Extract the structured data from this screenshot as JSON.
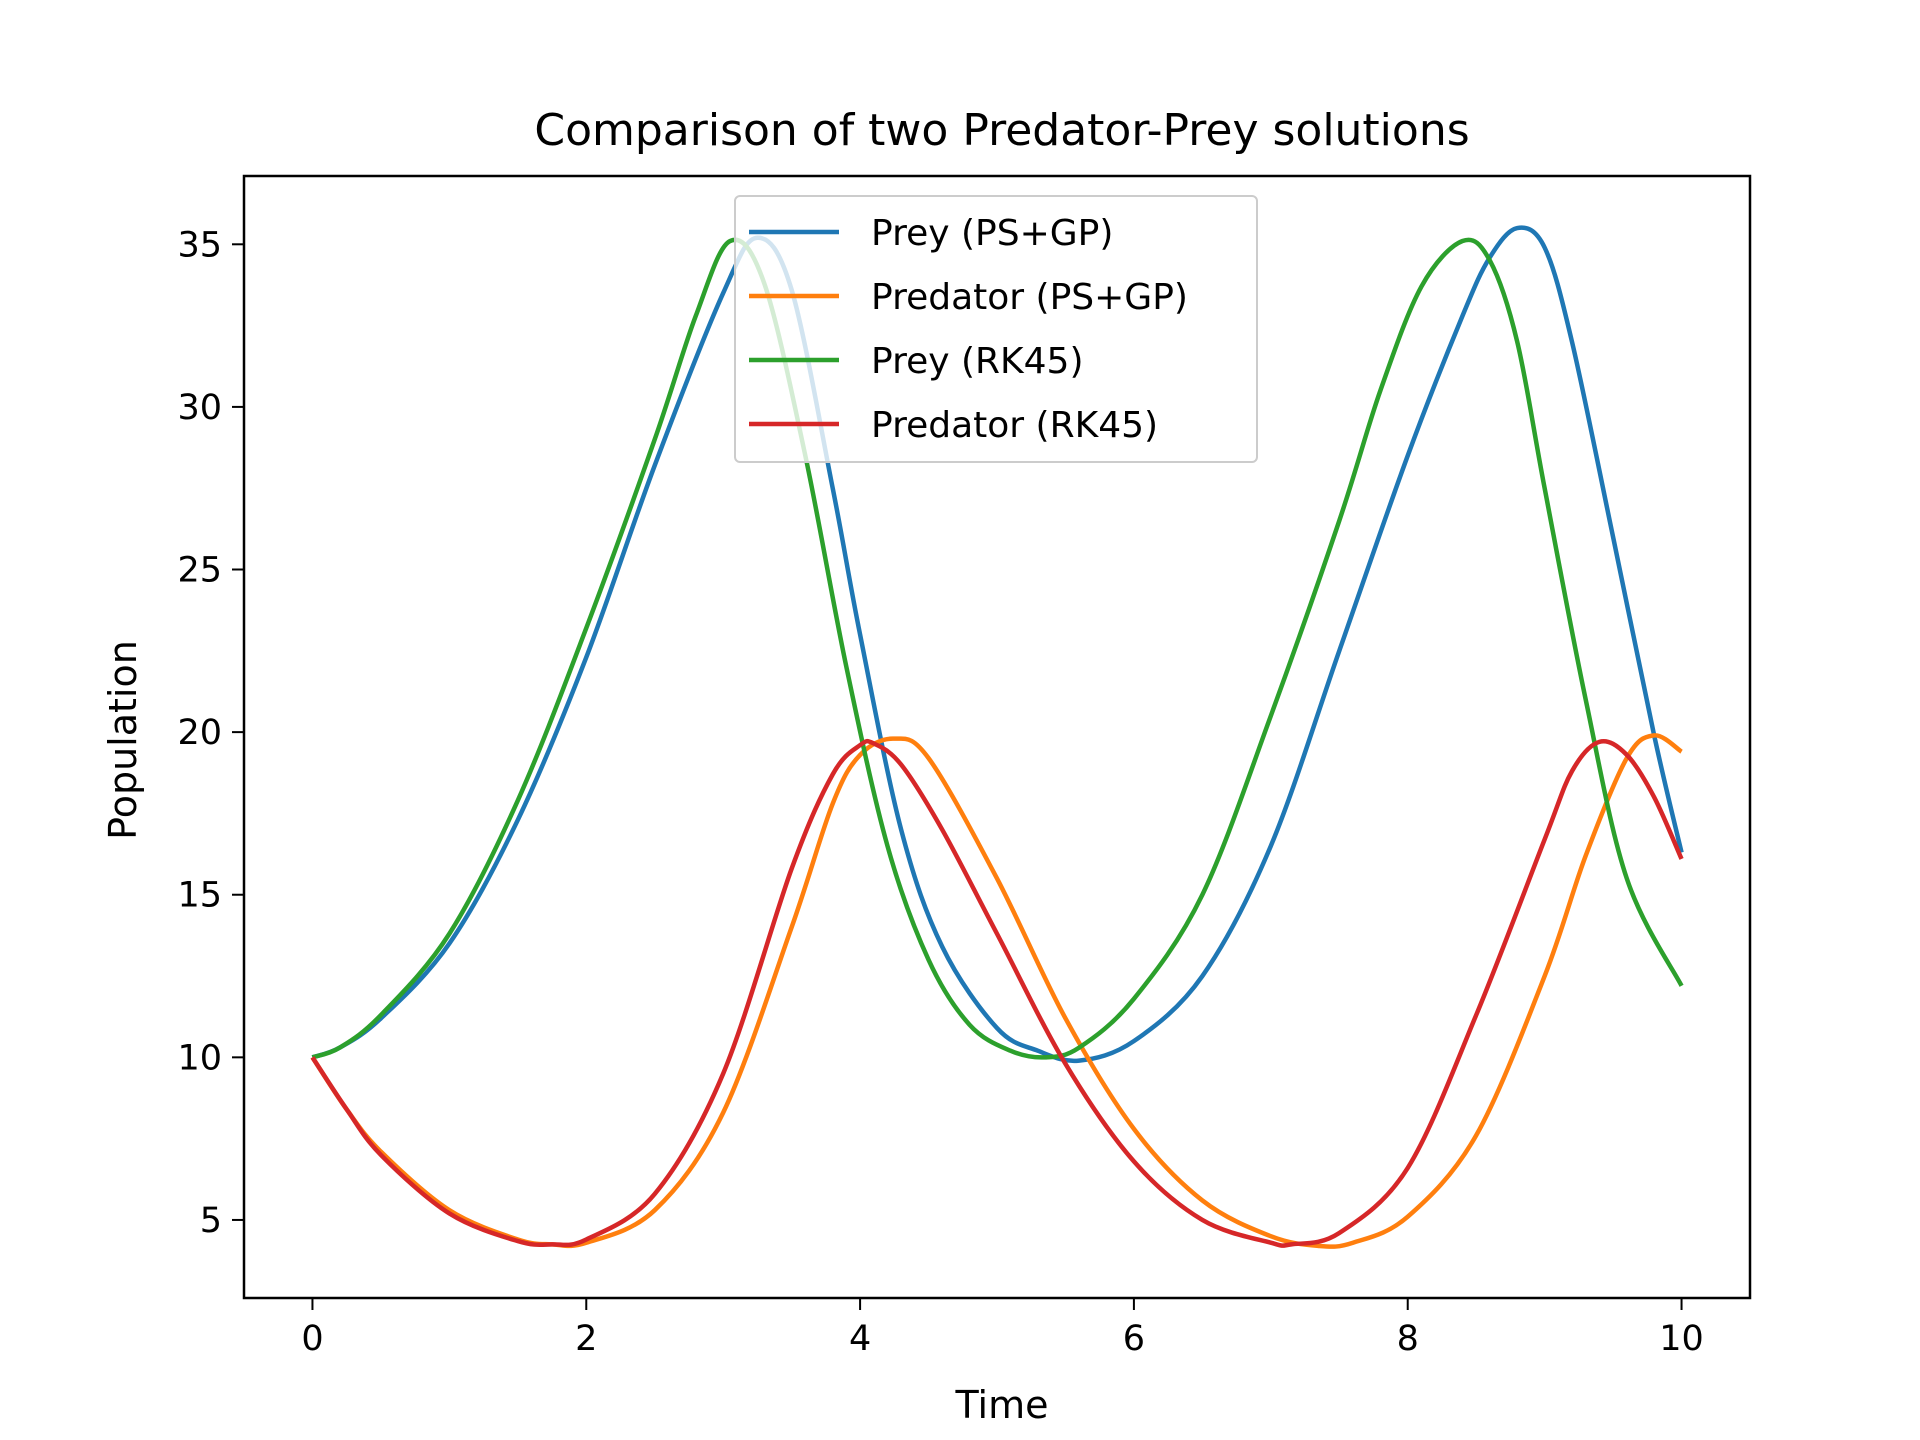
{
  "chart_data": {
    "type": "line",
    "title": "Comparison of two Predator-Prey solutions",
    "xlabel": "Time",
    "ylabel": "Population",
    "xlim": [
      -0.5,
      10.5
    ],
    "ylim": [
      2.6,
      37.1
    ],
    "xticks": [
      0,
      2,
      4,
      6,
      8,
      10
    ],
    "yticks": [
      5,
      10,
      15,
      20,
      25,
      30,
      35
    ],
    "grid": false,
    "legend_position": "upper-center",
    "series": [
      {
        "name": "Prey (PS+GP)",
        "color": "#1f77b4",
        "x": [
          0,
          0.2,
          0.5,
          1.0,
          1.5,
          2.0,
          2.5,
          3.0,
          3.25,
          3.5,
          3.8,
          4.0,
          4.3,
          4.6,
          5.0,
          5.3,
          5.6,
          6.0,
          6.5,
          7.0,
          7.5,
          8.0,
          8.4,
          8.6,
          8.8,
          9.0,
          9.2,
          9.5,
          9.8,
          10.0
        ],
        "y": [
          10.0,
          10.3,
          11.2,
          13.5,
          17.3,
          22.3,
          28.2,
          33.5,
          35.2,
          33.6,
          27.5,
          23.0,
          17.0,
          13.4,
          10.9,
          10.2,
          9.9,
          10.5,
          12.5,
          16.5,
          22.5,
          28.5,
          32.8,
          34.6,
          35.5,
          34.9,
          32.0,
          26.0,
          19.9,
          16.3
        ]
      },
      {
        "name": "Predator (PS+GP)",
        "color": "#ff7f0e",
        "x": [
          0,
          0.25,
          0.5,
          1.0,
          1.5,
          1.75,
          2.0,
          2.5,
          3.0,
          3.5,
          3.8,
          4.0,
          4.25,
          4.5,
          5.0,
          5.5,
          6.0,
          6.5,
          7.0,
          7.35,
          7.6,
          8.0,
          8.5,
          9.0,
          9.3,
          9.6,
          9.8,
          10.0
        ],
        "y": [
          10.0,
          8.4,
          7.1,
          5.3,
          4.4,
          4.25,
          4.3,
          5.3,
          8.3,
          14.0,
          17.8,
          19.3,
          19.8,
          19.2,
          15.5,
          11.2,
          7.8,
          5.6,
          4.5,
          4.2,
          4.3,
          5.1,
          7.6,
          12.5,
          16.2,
          19.2,
          19.9,
          19.4
        ]
      },
      {
        "name": "Prey (RK45)",
        "color": "#2ca02c",
        "x": [
          0,
          0.2,
          0.5,
          1.0,
          1.5,
          2.0,
          2.5,
          2.8,
          3.05,
          3.3,
          3.6,
          3.9,
          4.2,
          4.5,
          4.8,
          5.1,
          5.35,
          5.6,
          6.0,
          6.5,
          7.0,
          7.5,
          7.8,
          8.1,
          8.4,
          8.6,
          8.8,
          9.0,
          9.3,
          9.6,
          10.0
        ],
        "y": [
          10.0,
          10.3,
          11.3,
          13.8,
          17.9,
          23.2,
          29.0,
          32.8,
          35.1,
          33.8,
          28.5,
          22.0,
          16.5,
          13.0,
          11.0,
          10.2,
          10.0,
          10.3,
          11.8,
          15.0,
          20.5,
          26.5,
          30.5,
          33.7,
          35.1,
          34.5,
          32.0,
          27.5,
          21.0,
          15.5,
          12.2
        ]
      },
      {
        "name": "Predator (RK45)",
        "color": "#d62728",
        "x": [
          0,
          0.25,
          0.5,
          1.0,
          1.5,
          1.75,
          2.0,
          2.5,
          3.0,
          3.5,
          3.8,
          4.0,
          4.1,
          4.3,
          4.6,
          5.0,
          5.5,
          6.0,
          6.5,
          7.0,
          7.15,
          7.5,
          8.0,
          8.5,
          9.0,
          9.2,
          9.4,
          9.6,
          9.8,
          10.0
        ],
        "y": [
          10.0,
          8.4,
          7.0,
          5.2,
          4.35,
          4.25,
          4.4,
          5.8,
          9.5,
          15.8,
          18.7,
          19.6,
          19.65,
          19.0,
          17.0,
          13.8,
          9.8,
          6.8,
          5.0,
          4.3,
          4.25,
          4.6,
          6.6,
          11.3,
          16.7,
          18.8,
          19.7,
          19.3,
          18.0,
          16.1
        ]
      }
    ]
  }
}
